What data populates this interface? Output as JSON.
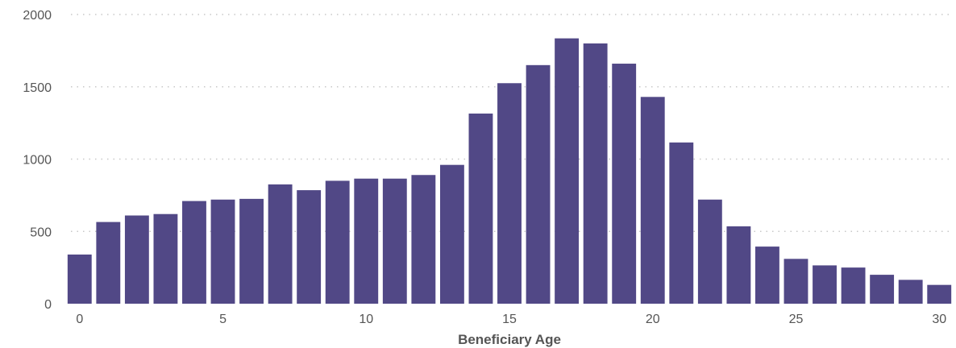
{
  "chart_data": {
    "type": "bar",
    "xlabel": "Beneficiary Age",
    "ylabel": "",
    "ylim": [
      0,
      2000
    ],
    "yticks": [
      0,
      500,
      1000,
      1500,
      2000
    ],
    "xticks": [
      0,
      5,
      10,
      15,
      20,
      25,
      30
    ],
    "grid": "horizontal-dotted",
    "bar_color": "#514886",
    "categories": [
      0,
      1,
      2,
      3,
      4,
      5,
      6,
      7,
      8,
      9,
      10,
      11,
      12,
      13,
      14,
      15,
      16,
      17,
      18,
      19,
      20,
      21,
      22,
      23,
      24,
      25,
      26,
      27,
      28,
      29,
      30
    ],
    "values": [
      340,
      565,
      610,
      620,
      710,
      720,
      725,
      825,
      785,
      850,
      865,
      865,
      890,
      960,
      1315,
      1525,
      1650,
      1835,
      1800,
      1660,
      1430,
      1115,
      720,
      535,
      395,
      310,
      265,
      250,
      200,
      165,
      130
    ]
  }
}
